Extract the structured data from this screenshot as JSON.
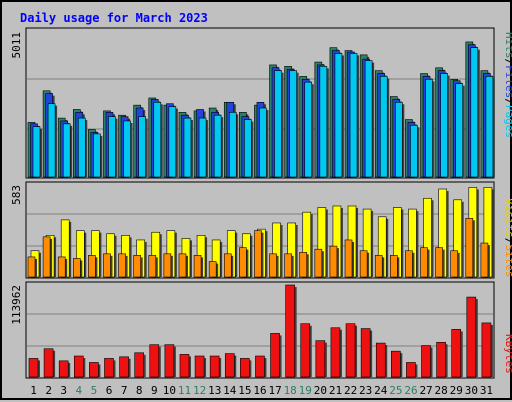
{
  "title": "Daily usage for March 2023",
  "colors": {
    "background": "#c0c0c0",
    "title": "#0000ff",
    "hits": "#2a8068",
    "files": "#2244dd",
    "pages": "#00c8f0",
    "visits": "#ffff00",
    "sites": "#ff8c00",
    "kbytes": "#ee1111",
    "weekend_tick": "#2a8068",
    "weekday_tick": "#000000"
  },
  "chart_data": [
    {
      "type": "bar",
      "panel": "top",
      "max_label": "5011",
      "legend": [
        "Hits",
        "Files",
        "Pages"
      ],
      "categories": [
        "1",
        "2",
        "3",
        "4",
        "5",
        "6",
        "7",
        "8",
        "9",
        "10",
        "11",
        "12",
        "13",
        "14",
        "15",
        "16",
        "17",
        "18",
        "19",
        "20",
        "21",
        "22",
        "23",
        "24",
        "25",
        "26",
        "27",
        "28",
        "29",
        "30",
        "31"
      ],
      "weekend_days": [
        "4",
        "5",
        "11",
        "12",
        "18",
        "19",
        "25",
        "26"
      ],
      "ylim": [
        0,
        5011
      ],
      "series": [
        {
          "name": "Hits",
          "values": [
            1900,
            3000,
            2050,
            2350,
            1650,
            2300,
            2150,
            2500,
            2750,
            2500,
            2250,
            2300,
            2400,
            2600,
            2250,
            2500,
            3900,
            3850,
            3500,
            4000,
            4500,
            4400,
            4250,
            3700,
            2800,
            2000,
            3600,
            3800,
            3400,
            4700,
            3700
          ]
        },
        {
          "name": "Files",
          "values": [
            1850,
            2900,
            1950,
            2250,
            1550,
            2250,
            2100,
            2400,
            2700,
            2550,
            2150,
            2350,
            2250,
            2600,
            2100,
            2600,
            3800,
            3750,
            3400,
            3900,
            4400,
            4350,
            4100,
            3600,
            2700,
            1900,
            3500,
            3700,
            3350,
            4600,
            3600
          ]
        },
        {
          "name": "Pages",
          "values": [
            1750,
            2550,
            1850,
            2050,
            1500,
            2100,
            1950,
            2100,
            2600,
            2450,
            2050,
            2050,
            2150,
            2250,
            2000,
            2400,
            3700,
            3700,
            3300,
            3850,
            4300,
            4300,
            4050,
            3500,
            2600,
            1800,
            3400,
            3600,
            3250,
            4500,
            3500
          ]
        }
      ]
    },
    {
      "type": "bar",
      "panel": "middle",
      "max_label": "583",
      "legend": [
        "Sites",
        "Visits"
      ],
      "categories": [
        "1",
        "2",
        "3",
        "4",
        "5",
        "6",
        "7",
        "8",
        "9",
        "10",
        "11",
        "12",
        "13",
        "14",
        "15",
        "16",
        "17",
        "18",
        "19",
        "20",
        "21",
        "22",
        "23",
        "24",
        "25",
        "26",
        "27",
        "28",
        "29",
        "30",
        "31"
      ],
      "ylim": [
        0,
        583
      ],
      "series": [
        {
          "name": "Visits",
          "values": [
            170,
            270,
            370,
            300,
            300,
            280,
            270,
            240,
            290,
            300,
            250,
            270,
            240,
            300,
            280,
            310,
            350,
            350,
            420,
            450,
            460,
            460,
            440,
            390,
            450,
            440,
            510,
            570,
            500,
            580,
            580
          ]
        },
        {
          "name": "Sites",
          "values": [
            130,
            260,
            130,
            120,
            140,
            150,
            150,
            140,
            140,
            150,
            150,
            140,
            100,
            150,
            190,
            300,
            150,
            150,
            160,
            180,
            200,
            240,
            170,
            140,
            140,
            170,
            190,
            190,
            170,
            380,
            220
          ]
        }
      ]
    },
    {
      "type": "bar",
      "panel": "bottom",
      "max_label": "113962",
      "legend": [
        "KBytes"
      ],
      "categories": [
        "1",
        "2",
        "3",
        "4",
        "5",
        "6",
        "7",
        "8",
        "9",
        "10",
        "11",
        "12",
        "13",
        "14",
        "15",
        "16",
        "17",
        "18",
        "19",
        "20",
        "21",
        "22",
        "23",
        "24",
        "25",
        "26",
        "27",
        "28",
        "29",
        "30",
        "31"
      ],
      "ylim": [
        0,
        113962
      ],
      "series": [
        {
          "name": "KBytes",
          "values": [
            23000,
            35000,
            20000,
            26000,
            18000,
            23000,
            25000,
            30000,
            40000,
            40000,
            28000,
            26000,
            26000,
            29000,
            23000,
            26000,
            54000,
            113962,
            66000,
            45000,
            61000,
            66000,
            60000,
            42000,
            32000,
            18000,
            39000,
            43000,
            59000,
            99000,
            67000
          ]
        }
      ]
    }
  ]
}
